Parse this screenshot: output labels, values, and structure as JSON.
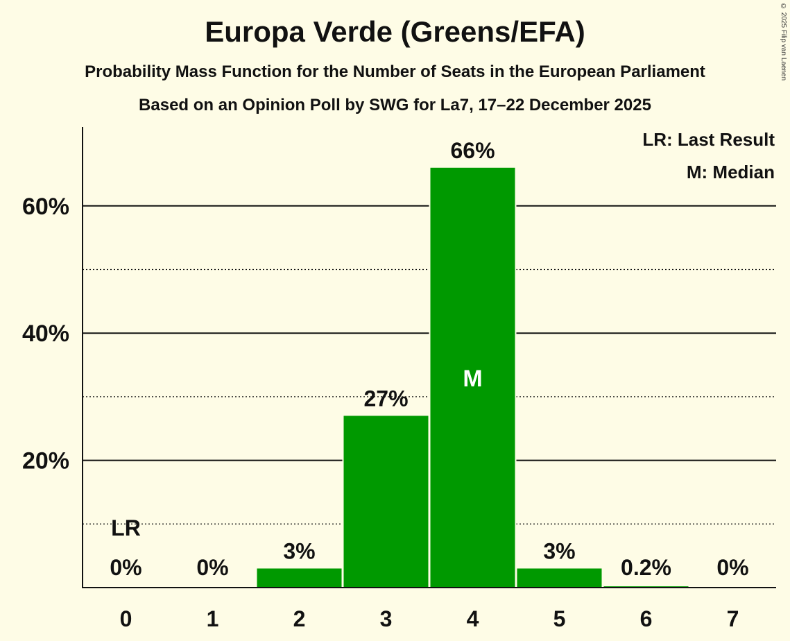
{
  "header": {
    "title": "Europa Verde (Greens/EFA)",
    "subtitle": "Probability Mass Function for the Number of Seats in the European Parliament",
    "poll": "Based on an Opinion Poll by SWG for La7, 17–22 December 2025",
    "copyright": "© 2025 Filip van Laenen"
  },
  "legend": {
    "last_result": "LR: Last Result",
    "median": "M: Median"
  },
  "colors": {
    "bar": "#009900",
    "background": "#FEFCE6",
    "text": "#111111"
  },
  "chart_data": {
    "type": "bar",
    "title": "Europa Verde (Greens/EFA)",
    "xlabel": "",
    "ylabel": "",
    "categories": [
      "0",
      "1",
      "2",
      "3",
      "4",
      "5",
      "6",
      "7"
    ],
    "values": [
      0,
      0,
      3,
      27,
      66,
      3,
      0.2,
      0
    ],
    "value_labels": [
      "0%",
      "0%",
      "3%",
      "27%",
      "66%",
      "3%",
      "0.2%",
      "0%"
    ],
    "ylim": [
      0,
      72
    ],
    "yticks_major": [
      20,
      40,
      60
    ],
    "ytick_labels": [
      "20%",
      "40%",
      "60%"
    ],
    "yticks_minor": [
      10,
      30,
      50
    ],
    "last_result_seat": 0,
    "last_result_label": "LR",
    "median_seat": 4,
    "median_label": "M"
  }
}
